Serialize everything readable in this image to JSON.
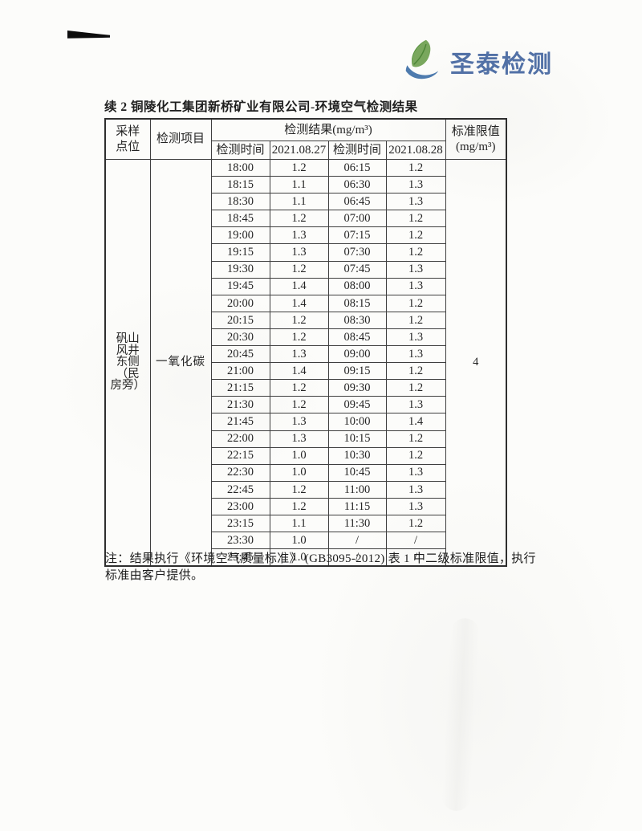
{
  "logo": {
    "text": "圣泰检测",
    "text_color": "#5271a6",
    "leaf_color": "#79a75d",
    "leaf_dark_color": "#57923f",
    "swoosh_color": "#4e7bae"
  },
  "document": {
    "title": "续 2 铜陵化工集团新桥矿业有限公司-环境空气检测结果",
    "note": "注：结果执行《环境空气质量标准》 (GB3095-2012) 表 1 中二级标准限值，执行标准由客户提供。"
  },
  "table": {
    "header": {
      "sampling_point": "采样\n点位",
      "item": "检测项目",
      "result_group": "检测结果(mg/m³)",
      "time_1": "检测时间",
      "date_1": "2021.08.27",
      "time_2": "检测时间",
      "date_2": "2021.08.28",
      "limit": "标准限值\n(mg/m³)"
    },
    "sampling_point": "矾山风井东侧（民房旁）",
    "sampling_point_lines": [
      "矾山",
      "风井",
      "东侧",
      "（民",
      "房旁）"
    ],
    "item": "一氧化碳",
    "limit": "4",
    "rows": [
      [
        "18:00",
        "1.2",
        "06:15",
        "1.2"
      ],
      [
        "18:15",
        "1.1",
        "06:30",
        "1.3"
      ],
      [
        "18:30",
        "1.1",
        "06:45",
        "1.3"
      ],
      [
        "18:45",
        "1.2",
        "07:00",
        "1.2"
      ],
      [
        "19:00",
        "1.3",
        "07:15",
        "1.2"
      ],
      [
        "19:15",
        "1.3",
        "07:30",
        "1.2"
      ],
      [
        "19:30",
        "1.2",
        "07:45",
        "1.3"
      ],
      [
        "19:45",
        "1.4",
        "08:00",
        "1.3"
      ],
      [
        "20:00",
        "1.4",
        "08:15",
        "1.2"
      ],
      [
        "20:15",
        "1.2",
        "08:30",
        "1.2"
      ],
      [
        "20:30",
        "1.2",
        "08:45",
        "1.3"
      ],
      [
        "20:45",
        "1.3",
        "09:00",
        "1.3"
      ],
      [
        "21:00",
        "1.4",
        "09:15",
        "1.2"
      ],
      [
        "21:15",
        "1.2",
        "09:30",
        "1.2"
      ],
      [
        "21:30",
        "1.2",
        "09:45",
        "1.3"
      ],
      [
        "21:45",
        "1.3",
        "10:00",
        "1.4"
      ],
      [
        "22:00",
        "1.3",
        "10:15",
        "1.2"
      ],
      [
        "22:15",
        "1.0",
        "10:30",
        "1.2"
      ],
      [
        "22:30",
        "1.0",
        "10:45",
        "1.3"
      ],
      [
        "22:45",
        "1.2",
        "11:00",
        "1.3"
      ],
      [
        "23:00",
        "1.2",
        "11:15",
        "1.3"
      ],
      [
        "23:15",
        "1.1",
        "11:30",
        "1.2"
      ],
      [
        "23:30",
        "1.0",
        "/",
        "/"
      ],
      [
        "23:45",
        "1.0",
        "/",
        "/"
      ]
    ]
  }
}
